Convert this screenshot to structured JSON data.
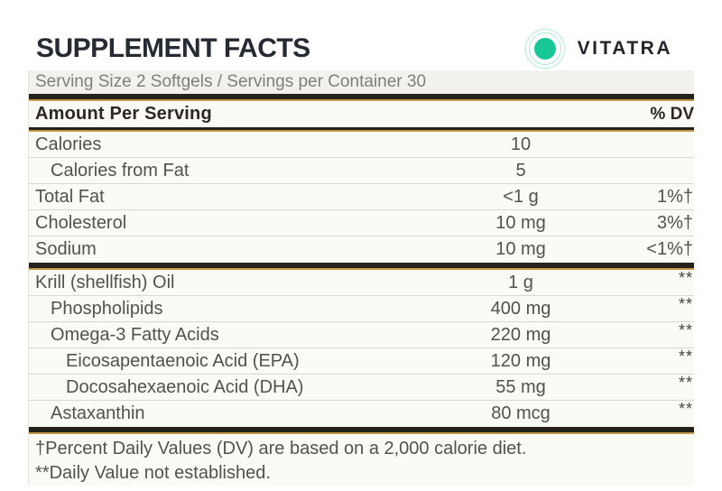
{
  "header": {
    "title": "SUPPLEMENT FACTS",
    "brand": "VITATRA"
  },
  "serving_line": "Serving Size 2 Softgels / Servings per Container 30",
  "table": {
    "amount_header": "Amount Per Serving",
    "dv_header": "% DV",
    "sections": [
      {
        "rows": [
          {
            "name": "Calories",
            "amount": "10",
            "dv": "",
            "indent": 0
          },
          {
            "name": "Calories from Fat",
            "amount": "5",
            "dv": "",
            "indent": 1
          },
          {
            "name": "Total Fat",
            "amount": "<1 g",
            "dv": "1%†",
            "indent": 0
          },
          {
            "name": "Cholesterol",
            "amount": "10 mg",
            "dv": "3%†",
            "indent": 0
          },
          {
            "name": "Sodium",
            "amount": "10 mg",
            "dv": "<1%†",
            "indent": 0
          }
        ]
      },
      {
        "rows": [
          {
            "name": "Krill (shellfish) Oil",
            "amount": "1 g",
            "dv": "**",
            "indent": 0
          },
          {
            "name": "Phospholipids",
            "amount": "400 mg",
            "dv": "**",
            "indent": 1
          },
          {
            "name": "Omega-3 Fatty Acids",
            "amount": "220 mg",
            "dv": "**",
            "indent": 1
          },
          {
            "name": "Eicosapentaenoic Acid (EPA)",
            "amount": "120 mg",
            "dv": "**",
            "indent": 2
          },
          {
            "name": "Docosahexaenoic Acid (DHA)",
            "amount": "55 mg",
            "dv": "**",
            "indent": 2
          },
          {
            "name": "Astaxanthin",
            "amount": "80 mcg",
            "dv": "**",
            "indent": 1
          }
        ]
      }
    ]
  },
  "footnotes": [
    "†Percent Daily Values (DV) are based on a 2,000 calorie diet.",
    "**Daily Value not established."
  ],
  "colors": {
    "accent_green": "#17c796",
    "bar_dark": "#25211b",
    "bar_gold": "#c49c48"
  }
}
